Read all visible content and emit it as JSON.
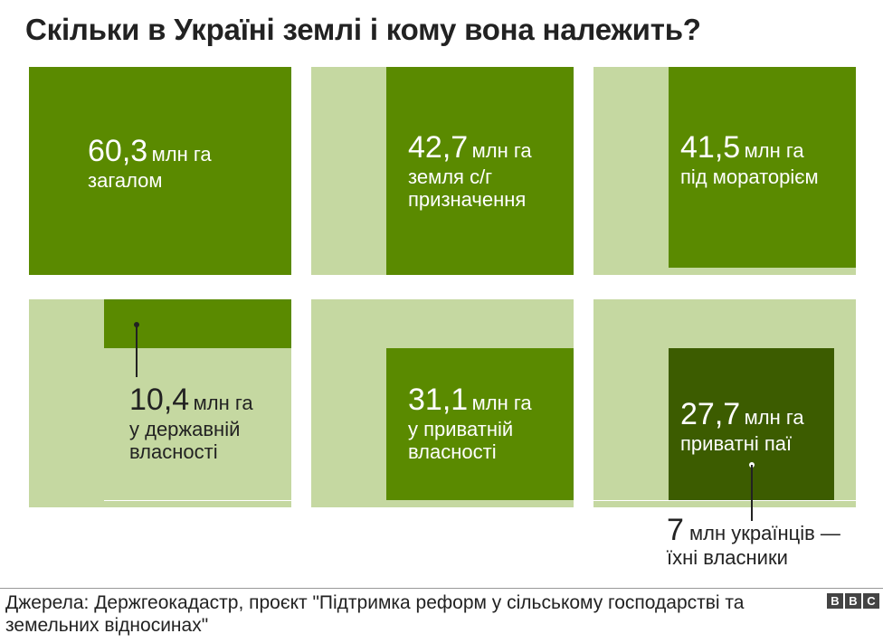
{
  "title": "Скільки в Україні землі і кому вона належить?",
  "colors": {
    "main": "#5a8a00",
    "light": "#c5d8a1",
    "dark": "#3c5c00",
    "text_light": "#ffffff",
    "text_dark": "#222222"
  },
  "chart_data": {
    "type": "area",
    "unit": "млн га",
    "panels": [
      {
        "value": "60,3",
        "unit": "млн га",
        "label": "загалом"
      },
      {
        "value": "42,7",
        "unit": "млн га",
        "label": "земля с/г призначення"
      },
      {
        "value": "41,5",
        "unit": "млн га",
        "label": "під мораторієм"
      },
      {
        "value": "10,4",
        "unit": "млн га",
        "label": "у державній власності"
      },
      {
        "value": "31,1",
        "unit": "млн га",
        "label": "у приватній власності"
      },
      {
        "value": "27,7",
        "unit": "млн га",
        "label": "приватні паї"
      }
    ],
    "owners": {
      "value": "7",
      "text": "млн українців —",
      "text2": "їхні власники"
    }
  },
  "footer": {
    "source": "Джерела: Держгеокадастр, проєкт \"Підтримка реформ у сільському господарстві та земельних відносинах\"",
    "logo": [
      "B",
      "B",
      "C"
    ]
  }
}
